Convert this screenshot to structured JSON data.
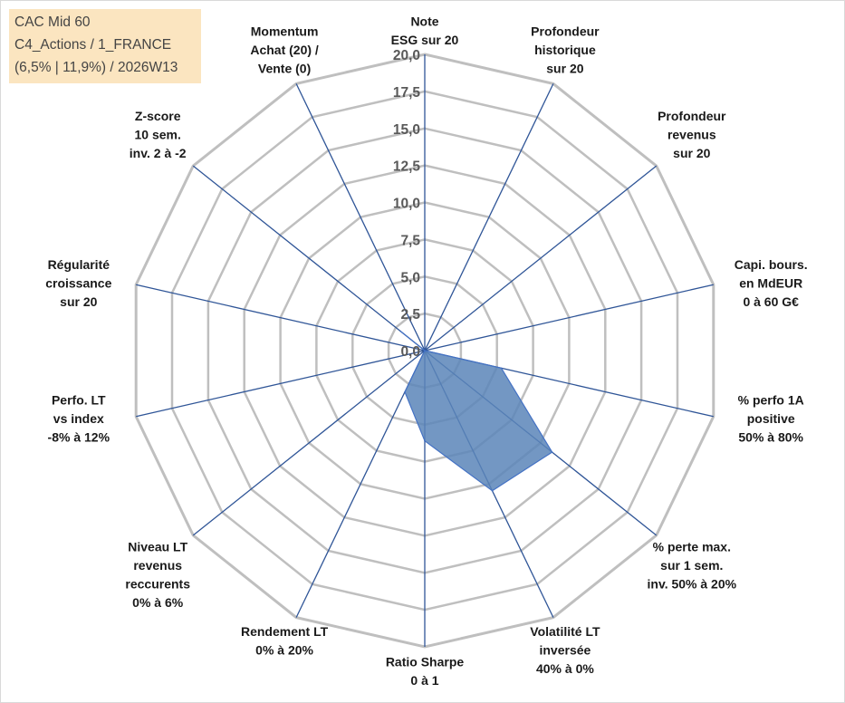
{
  "info_box": {
    "line1": "CAC Mid 60",
    "line2": "C4_Actions / 1_FRANCE",
    "line3": "(6,5% | 11,9%) / 2026W13"
  },
  "colors": {
    "grid": "#bfbfbf",
    "spoke": "#2f5597",
    "series_fill": "#5b85b8",
    "series_line": "#4472c4"
  },
  "chart_data": {
    "type": "radar",
    "title": "",
    "grid": true,
    "ylim": [
      0,
      20
    ],
    "ticks": [
      "0,0",
      "2,5",
      "5,0",
      "7,5",
      "10,0",
      "12,5",
      "15,0",
      "17,5",
      "20,0"
    ],
    "axes": [
      [
        "Note",
        "ESG sur 20"
      ],
      [
        "Profondeur",
        "historique",
        "sur 20"
      ],
      [
        "Profondeur",
        "revenus",
        "sur 20"
      ],
      [
        "Capi. bours.",
        "en MdEUR",
        "0 à 60 G€"
      ],
      [
        "% perfo 1A",
        "positive",
        "50% à 80%"
      ],
      [
        "% perte max.",
        "sur 1 sem.",
        "inv. 50% à 20%"
      ],
      [
        "Volatilité LT",
        "inversée",
        "40% à 0%"
      ],
      [
        "Ratio Sharpe",
        "0 à 1"
      ],
      [
        "Rendement LT",
        "0% à 20%"
      ],
      [
        "Niveau LT",
        "revenus",
        "reccurents",
        "0% à 6%"
      ],
      [
        "Perfo. LT",
        "vs index",
        "-8% à 12%"
      ],
      [
        "Régularité",
        "croissance",
        "sur 20"
      ],
      [
        "Z-score",
        "10 sem.",
        "inv. 2 à -2"
      ],
      [
        "Momentum",
        "Achat (20) /",
        "Vente (0)"
      ]
    ],
    "series": [
      {
        "values": [
          0,
          0,
          0,
          0,
          5.3,
          11.0,
          10.5,
          6.1,
          3.1,
          0,
          0,
          0,
          2.1,
          0
        ]
      }
    ]
  }
}
